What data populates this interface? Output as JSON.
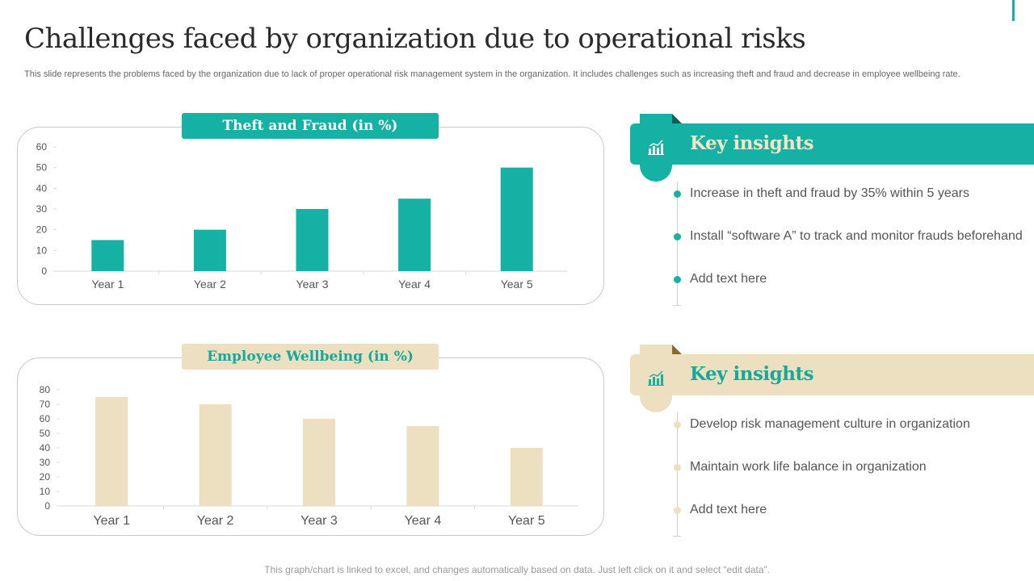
{
  "title": "Challenges faced by organization due to operational risks",
  "subtitle": "This slide represents the problems faced by the organization due to lack of proper operational risk management system in the organization. It includes challenges such as increasing theft and fraud and decrease in employee wellbeing rate.",
  "colors": {
    "teal": "#14b1a4",
    "beige": "#ede0c0",
    "dark_teal": "#0e5f58",
    "dark_beige": "#8a6a2a"
  },
  "chart_data": [
    {
      "type": "bar",
      "title": "Theft and Fraud (in %)",
      "categories": [
        "Year 1",
        "Year 2",
        "Year 3",
        "Year 4",
        "Year 5"
      ],
      "values": [
        15,
        20,
        30,
        35,
        50
      ],
      "ylim": [
        0,
        60
      ],
      "yticks": [
        0,
        10,
        20,
        30,
        40,
        50,
        60
      ],
      "xlabel": "",
      "ylabel": "",
      "grid": false
    },
    {
      "type": "bar",
      "title": "Employee Wellbeing (in %)",
      "categories": [
        "Year 1",
        "Year 2",
        "Year 3",
        "Year 4",
        "Year 5"
      ],
      "values": [
        75,
        70,
        60,
        55,
        40
      ],
      "ylim": [
        0,
        80
      ],
      "yticks": [
        0,
        10,
        20,
        30,
        40,
        50,
        60,
        70,
        80
      ],
      "xlabel": "",
      "ylabel": "",
      "grid": false
    }
  ],
  "insights": [
    {
      "heading": "Key insights",
      "icon": "chart-icon",
      "items": [
        "Increase in theft and fraud by 35% within 5 years",
        "Install “software A” to track and monitor frauds beforehand",
        "Add text here"
      ]
    },
    {
      "heading": "Key insights",
      "icon": "chart-icon",
      "items": [
        "Develop risk management culture in organization",
        "Maintain work life balance in organization",
        "Add text here"
      ]
    }
  ],
  "footer": "This graph/chart is linked to excel, and changes automatically based on data. Just left click on it and select “edit data”."
}
